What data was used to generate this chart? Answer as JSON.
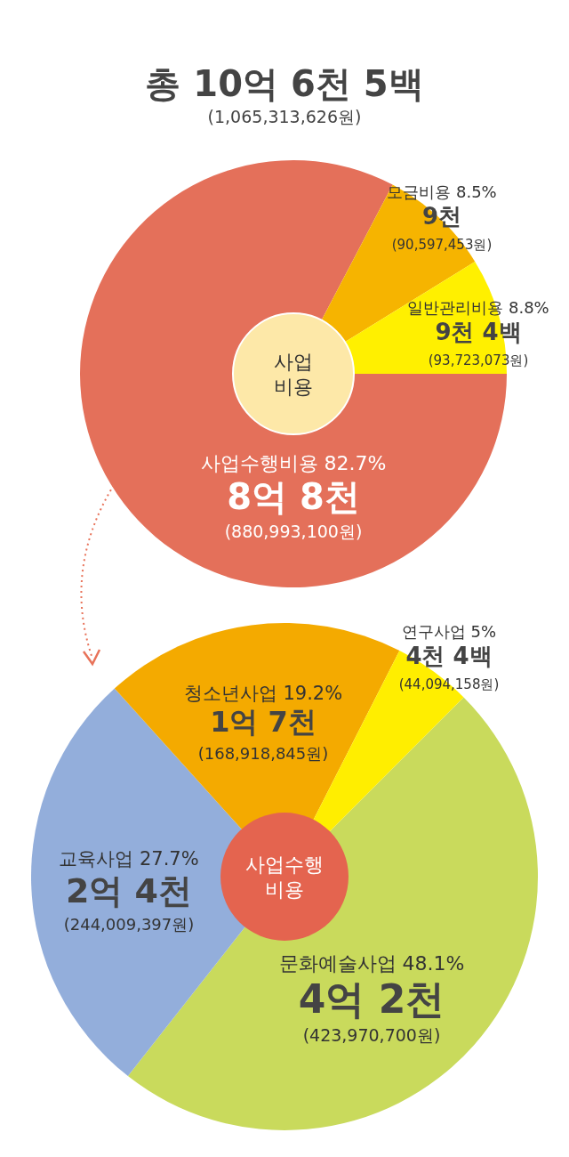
{
  "chart_data": [
    {
      "type": "donut",
      "title": "총 10억 6천 5백",
      "subtitle": "(1,065,313,626원)",
      "categories": [
        "사업수행비용",
        "모금비용",
        "일반관리비용"
      ],
      "values": [
        82.7,
        8.5,
        8.8
      ],
      "value_labels": [
        "82.7%",
        "8.5%",
        "8.8%"
      ],
      "colors": [
        "#e4705a",
        "#f6b400",
        "#fff000"
      ],
      "annotations": [
        "사업 비용",
        "8억 8천",
        "(880,993,100원)",
        "9천",
        "(90,597,453원)",
        "9천 4백",
        "(93,723,073원)"
      ]
    },
    {
      "type": "pie",
      "categories": [
        "문화예술사업",
        "교육사업",
        "청소년사업",
        "연구사업"
      ],
      "values": [
        48.1,
        27.7,
        19.2,
        5
      ],
      "value_labels": [
        "48.1%",
        "27.7%",
        "19.2%",
        "5%"
      ],
      "colors": [
        "#c9da5c",
        "#93aedb",
        "#f4aa00",
        "#ffee00"
      ],
      "annotations": [
        "사업수행 비용",
        "4억 2천",
        "(423,970,700원)",
        "2억 4천",
        "(244,009,397원)",
        "1억 7천",
        "(168,918,845원)",
        "4천 4백",
        "(44,094,158원)"
      ]
    }
  ]
}
